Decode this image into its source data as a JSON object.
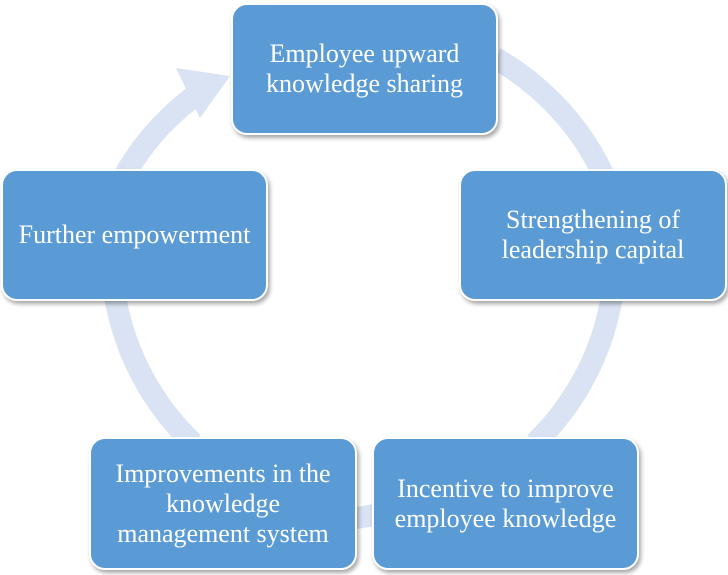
{
  "diagram": {
    "type": "cycle",
    "colors": {
      "node_fill": "#5b9bd5",
      "node_border": "#ffffff",
      "node_text": "#ffffff",
      "ring": "#dae3f3"
    },
    "nodes": [
      {
        "label": "Employee upward knowledge sharing"
      },
      {
        "label": "Strengthening of leadership capital"
      },
      {
        "label": "Incentive to improve employee knowledge"
      },
      {
        "label": "Improvements in the knowledge management system"
      },
      {
        "label": "Further empowerment"
      }
    ],
    "connector": {
      "icon": "arrow-icon",
      "direction": "clockwise"
    }
  }
}
